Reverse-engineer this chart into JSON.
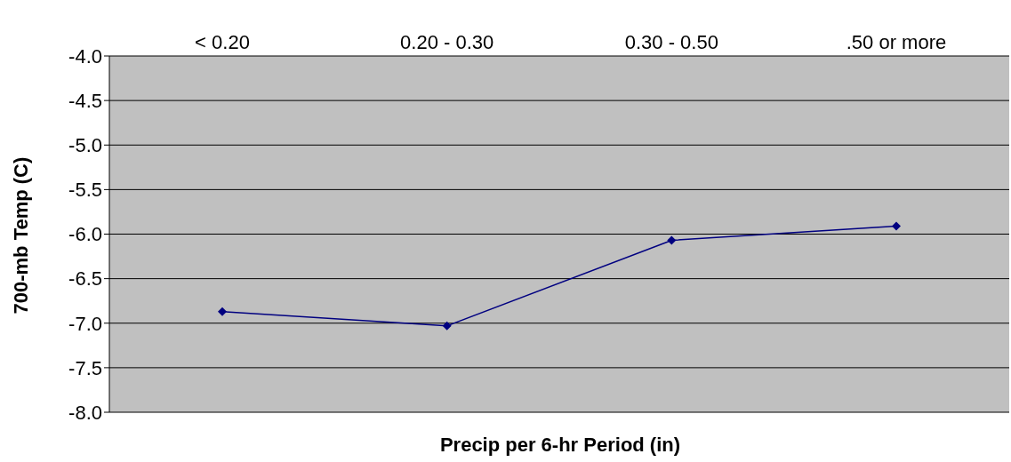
{
  "chart_data": {
    "type": "line",
    "xlabel": "Precip per 6-hr Period (in)",
    "ylabel": "700-mb Temp (C)",
    "categories": [
      "< 0.20",
      "0.20 - 0.30",
      "0.30 - 0.50",
      ".50 or more"
    ],
    "series": [
      {
        "color": "#000080",
        "values": [
          -6.87,
          -7.03,
          -6.07,
          -5.91
        ]
      }
    ],
    "ylim": [
      -8,
      -4
    ],
    "yticks": [
      {
        "value": -8,
        "label": "-8.0"
      },
      {
        "value": -7.5,
        "label": "-7.5"
      },
      {
        "value": -7,
        "label": "-7.0"
      },
      {
        "value": -6.5,
        "label": "-6.5"
      },
      {
        "value": -6,
        "label": "-6.0"
      },
      {
        "value": -5.5,
        "label": "-5.5"
      },
      {
        "value": -5,
        "label": "-5.0"
      },
      {
        "value": -4.5,
        "label": "-4.5"
      },
      {
        "value": -4,
        "label": "-4.0"
      }
    ],
    "grid": "y",
    "legend": false,
    "marker": "diamond",
    "line_style": "solid"
  }
}
